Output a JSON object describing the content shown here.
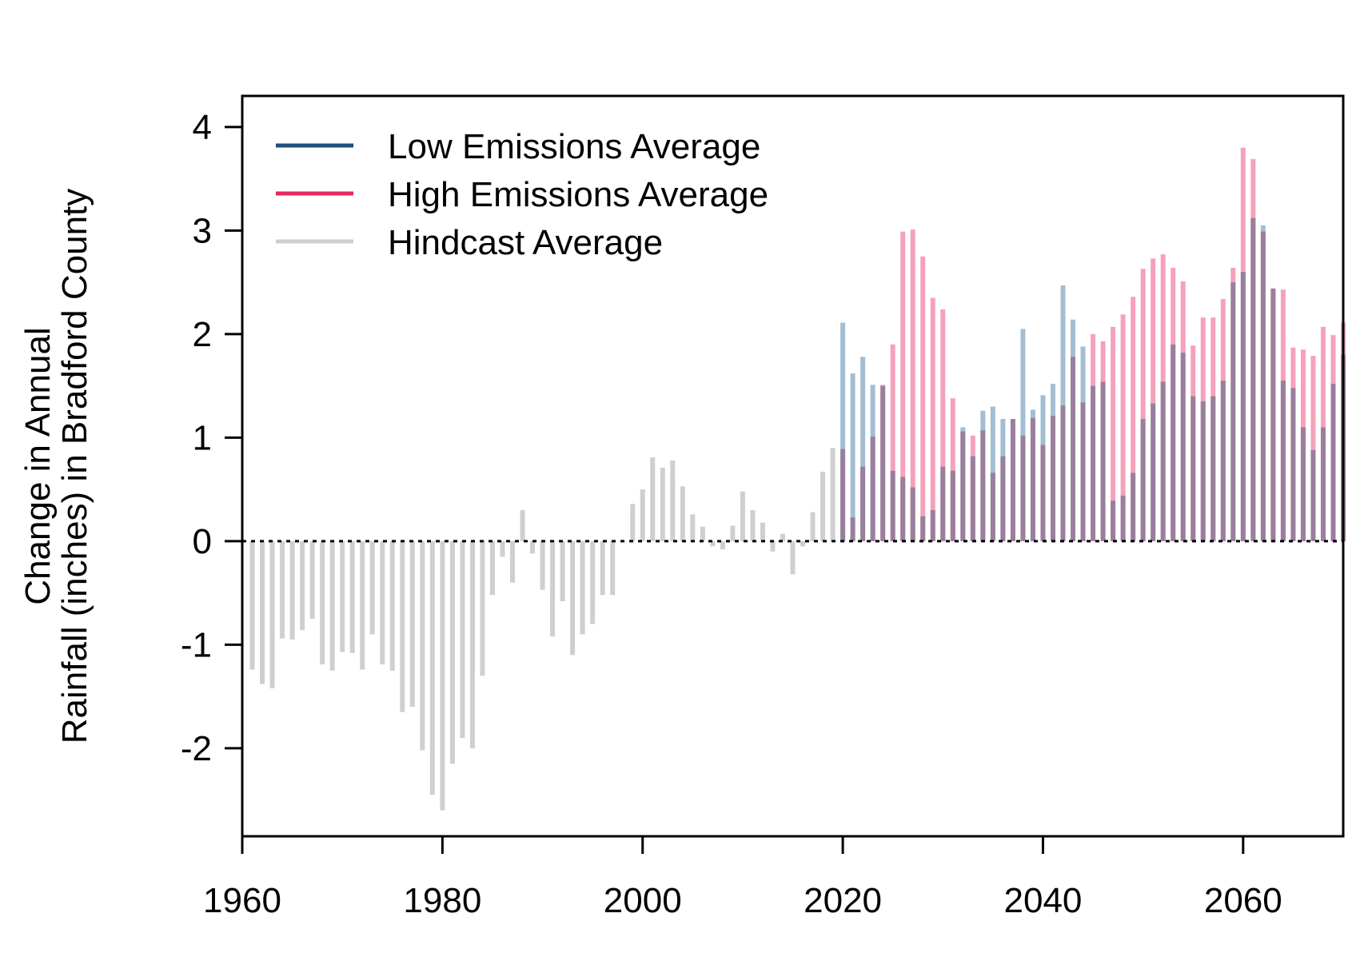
{
  "chart_data": {
    "type": "bar",
    "ylabel_lines": [
      "Change in Annual",
      "Rainfall (inches) in Bradford County"
    ],
    "xlim": [
      1960,
      2070
    ],
    "ylim": [
      -2.85,
      4.3
    ],
    "x_ticks": [
      1960,
      1980,
      2000,
      2020,
      2040,
      2060
    ],
    "y_ticks": [
      -2,
      -1,
      0,
      1,
      2,
      3,
      4
    ],
    "legend": [
      {
        "label": "Low Emissions Average",
        "color": "#1f4e79"
      },
      {
        "label": "High Emissions Average",
        "color": "#e8275f"
      },
      {
        "label": "Hindcast Average",
        "color": "#cfcfcf"
      }
    ],
    "colors": {
      "hindcast": "#cfcfcf",
      "low": "#a3bdd3",
      "high": "#f5a1bb",
      "overlap": "#9a7f9d"
    },
    "hindcast": {
      "start_year": 1961,
      "values": [
        -1.24,
        -1.38,
        -1.42,
        -0.94,
        -0.95,
        -0.86,
        -0.75,
        -1.19,
        -1.25,
        -1.07,
        -1.08,
        -1.24,
        -0.9,
        -1.19,
        -1.25,
        -1.65,
        -1.6,
        -2.02,
        -2.45,
        -2.6,
        -2.15,
        -1.9,
        -2.0,
        -1.3,
        -0.52,
        -0.15,
        -0.4,
        0.3,
        -0.12,
        -0.47,
        -0.92,
        -0.58,
        -1.1,
        -0.9,
        -0.8,
        -0.52,
        -0.52,
        0.0,
        0.36,
        0.5,
        0.81,
        0.71,
        0.78,
        0.53,
        0.26,
        0.14,
        -0.05,
        -0.08,
        0.15,
        0.48,
        0.3,
        0.18,
        -0.1,
        0.07,
        -0.32,
        -0.05,
        0.28,
        0.67,
        0.9
      ]
    },
    "low_emissions": {
      "start_year": 2020,
      "values": [
        2.11,
        1.62,
        1.78,
        1.51,
        1.5,
        0.68,
        0.62,
        0.52,
        0.24,
        0.3,
        0.72,
        0.68,
        1.1,
        0.82,
        1.26,
        1.3,
        1.18,
        1.18,
        2.05,
        1.27,
        1.41,
        1.52,
        2.47,
        2.14,
        1.88,
        1.5,
        1.54,
        0.39,
        0.44,
        0.66,
        1.18,
        1.33,
        1.54,
        1.9,
        1.82,
        1.4,
        1.35,
        1.4,
        1.55,
        2.5,
        2.6,
        3.12,
        3.05,
        2.44,
        1.55,
        1.48,
        1.1,
        0.88,
        1.1,
        1.52,
        1.8
      ]
    },
    "high_emissions": {
      "start_year": 2020,
      "values": [
        0.89,
        0.23,
        0.72,
        1.01,
        1.51,
        1.9,
        2.99,
        3.01,
        2.75,
        2.35,
        2.24,
        1.38,
        1.06,
        1.02,
        1.07,
        0.66,
        0.82,
        1.18,
        1.02,
        1.19,
        0.93,
        1.21,
        1.31,
        1.78,
        1.34,
        2.0,
        1.93,
        2.07,
        2.19,
        2.36,
        2.63,
        2.73,
        2.77,
        2.64,
        2.51,
        1.89,
        2.16,
        2.16,
        2.34,
        2.64,
        3.8,
        3.69,
        2.99,
        2.44,
        2.43,
        1.87,
        1.85,
        1.79,
        2.07,
        1.99,
        2.11
      ]
    }
  }
}
